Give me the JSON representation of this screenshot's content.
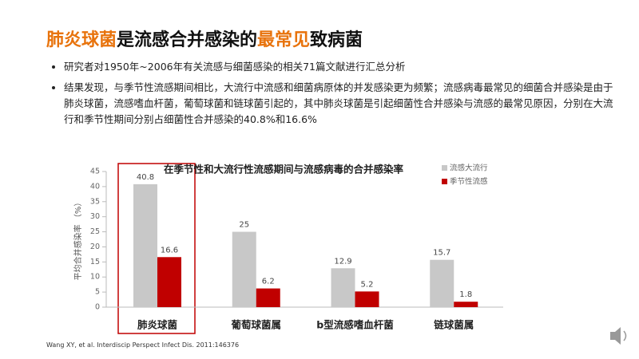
{
  "header": {
    "title_parts": [
      {
        "text": "肺炎球菌",
        "color": "#e8730c"
      },
      {
        "text": "是流感合并感染的",
        "color": "#111111"
      },
      {
        "text": "最常见",
        "color": "#e8730c"
      },
      {
        "text": "致病菌",
        "color": "#111111"
      }
    ]
  },
  "bullets": [
    "研究者对1950年~2006年有关流感与细菌感染的相关71篇文献进行汇总分析",
    "结果发现，与季节性流感期间相比，大流行中流感和细菌病原体的并发感染更为频繁；流感病毒最常见的细菌合并感染是由于肺炎球菌，流感嗜血杆菌，葡萄球菌和链球菌引起的，其中肺炎球菌是引起细菌性合并感染与流感的最常见原因，分别在大流行和季节性期间分别占细菌性合并感染的40.8%和16.6%"
  ],
  "chart_data": {
    "type": "bar",
    "title": "在季节性和大流行性流感期间与流感病毒的合并感染率",
    "y_label": "平均合并感染率 （%）",
    "categories": [
      "肺炎球菌",
      "葡萄球菌属",
      "b型流感嗜血杆菌",
      "链球菌属"
    ],
    "series": [
      {
        "name": "流感大流行",
        "color": "#c8c8c8",
        "values": [
          40.8,
          25,
          12.9,
          15.7
        ]
      },
      {
        "name": "季节性流感",
        "color": "#c00000",
        "values": [
          16.6,
          6.2,
          5.2,
          1.8
        ]
      }
    ],
    "ylim": [
      0,
      45
    ],
    "yticks": [
      0,
      5,
      10,
      15,
      20,
      25,
      30,
      35,
      40,
      45
    ]
  },
  "footer": "Wang XY, et al. Interdiscip Perspect Infect Dis. 2011:146376"
}
